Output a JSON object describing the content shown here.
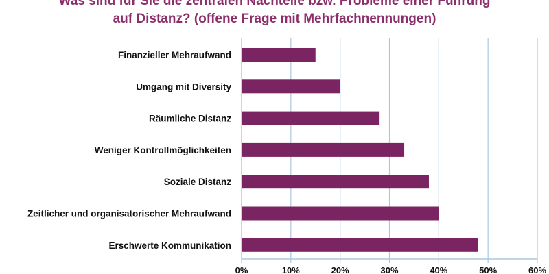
{
  "chart_data": {
    "type": "bar",
    "orientation": "horizontal",
    "title": "Was sind für Sie die zentralen Nachteile bzw. Probleme einer Führung auf Distanz? (offene Frage mit Mehrfachnennungen)",
    "title_lines": [
      "Was sind für Sie die zentralen Nachteile bzw. Probleme einer Führung",
      "auf Distanz? (offene Frage mit Mehrfachnennungen)"
    ],
    "categories": [
      "Finanzieller Mehraufwand",
      "Umgang mit Diversity",
      "Räumliche Distanz",
      "Weniger Kontrollmöglichkeiten",
      "Soziale Distanz",
      "Zeitlicher und organisatorischer Mehraufwand",
      "Erschwerte Kommunikation"
    ],
    "values": [
      15,
      20,
      28,
      33,
      38,
      40,
      48
    ],
    "unit": "%",
    "xlim": [
      0,
      60
    ],
    "xticks": [
      "0%",
      "10%",
      "20%",
      "30%",
      "40%",
      "50%",
      "60%"
    ],
    "grid": true,
    "bar_color": "#7b2462",
    "grid_color": "#a9c8e0",
    "title_color": "#8b2f6b"
  }
}
